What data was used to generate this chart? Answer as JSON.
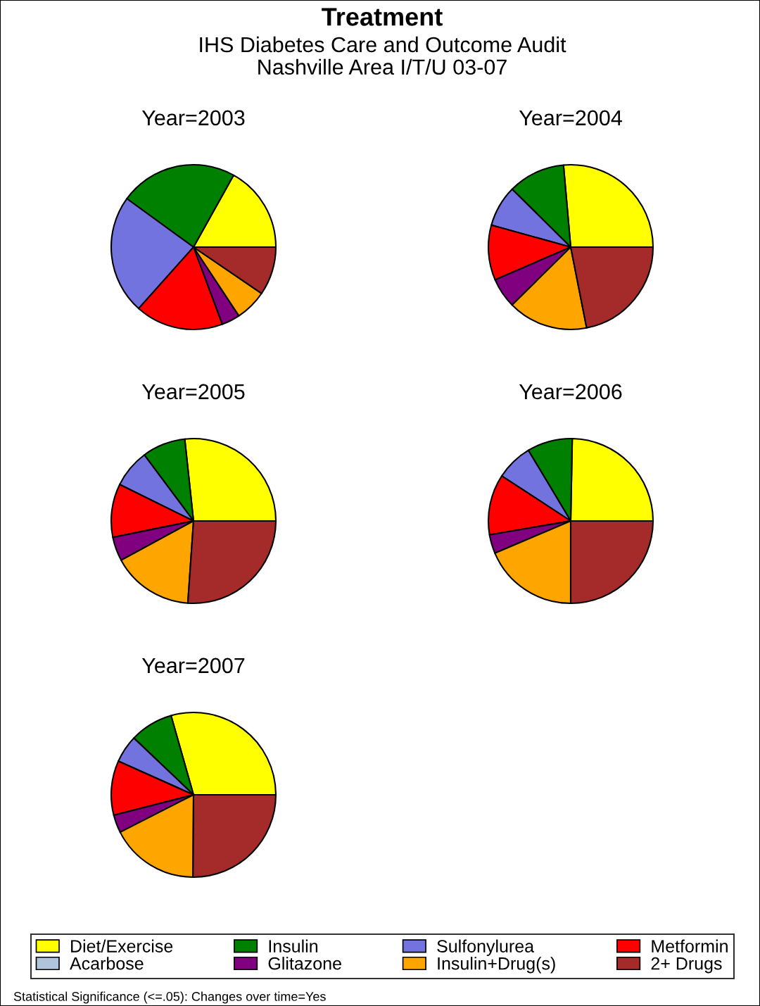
{
  "chart_data": [
    {
      "type": "other",
      "title": "Treatment",
      "subtitle": "IHS Diabetes Care and Outcome Audit\nNashville Area I/T/U 03-07",
      "annotations": [
        "Statistical Significance (<=.05): Changes over time=Yes"
      ]
    },
    {
      "type": "pie",
      "title": "Year=2003",
      "legend": "bottom",
      "categories": [
        "Diet/Exercise",
        "Insulin",
        "Sulfonylurea",
        "Metformin",
        "Acarbose",
        "Glitazone",
        "Insulin+Drug(s)",
        "2+ Drugs"
      ],
      "values": [
        16.9,
        23.1,
        23.4,
        17.3,
        0,
        3.6,
        6.2,
        9.5
      ],
      "colors": [
        "#ffff00",
        "#008000",
        "#7373e0",
        "#ff0000",
        "#b0c4de",
        "#800080",
        "#ffa500",
        "#a52a2a"
      ]
    },
    {
      "type": "pie",
      "title": "Year=2004",
      "categories": [
        null,
        null,
        null,
        null,
        null,
        null,
        null,
        null
      ],
      "values": [
        26.4,
        11.2,
        8.1,
        10.8,
        0,
        5.9,
        15.7,
        21.9
      ],
      "colors": [
        "#ffff00",
        "#008000",
        "#7373e0",
        "#ff0000",
        "#b0c4de",
        "#800080",
        "#ffa500",
        "#a52a2a"
      ]
    },
    {
      "type": "pie",
      "title": "Year=2005",
      "categories": [
        null,
        null,
        null,
        null,
        null,
        null,
        null,
        null
      ],
      "values": [
        26.7,
        8.5,
        7.5,
        10.5,
        0,
        4.7,
        16.0,
        26.1
      ],
      "colors": [
        "#ffff00",
        "#008000",
        "#7373e0",
        "#ff0000",
        "#b0c4de",
        "#800080",
        "#ffa500",
        "#a52a2a"
      ]
    },
    {
      "type": "pie",
      "title": "Year=2006",
      "categories": [
        null,
        null,
        null,
        null,
        null,
        null,
        null,
        null
      ],
      "values": [
        24.7,
        8.9,
        7.2,
        11.9,
        0,
        3.7,
        18.6,
        25.0
      ],
      "colors": [
        "#ffff00",
        "#008000",
        "#7373e0",
        "#ff0000",
        "#b0c4de",
        "#800080",
        "#ffa500",
        "#a52a2a"
      ]
    },
    {
      "type": "pie",
      "title": "Year=2007",
      "categories": [
        null,
        null,
        null,
        null,
        null,
        null,
        null,
        null
      ],
      "values": [
        29.4,
        8.5,
        5.4,
        10.7,
        0,
        3.5,
        17.4,
        25.1
      ],
      "colors": [
        "#ffff00",
        "#008000",
        "#7373e0",
        "#ff0000",
        "#b0c4de",
        "#800080",
        "#ffa500",
        "#a52a2a"
      ]
    }
  ]
}
